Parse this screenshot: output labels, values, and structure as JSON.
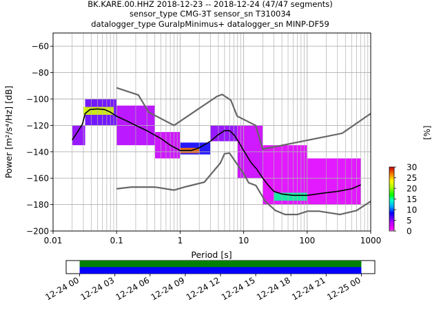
{
  "chart_data": [
    {
      "type": "heatmap",
      "title_lines": [
        "BK.KARE.00.HHZ   2018-12-23 -- 2018-12-24  (47/47 segments)",
        "sensor_type CMG-3T sensor_sn T310034",
        "datalogger_type GuralpMinimus+ datalogger_sn MINP-DF59"
      ],
      "xlabel": "Period [s]",
      "ylabel": "Power [m²/s⁴/Hz] [dB]",
      "x_scale": "log",
      "xlim": [
        0.01,
        1000
      ],
      "ylim": [
        -200,
        -50
      ],
      "x_ticks": [
        {
          "v": 0.01,
          "label": "0.01"
        },
        {
          "v": 0.1,
          "label": "0.1"
        },
        {
          "v": 1,
          "label": "1"
        },
        {
          "v": 10,
          "label": "10"
        },
        {
          "v": 100,
          "label": "100"
        },
        {
          "v": 1000,
          "label": "1000"
        }
      ],
      "y_ticks": [
        {
          "v": -60,
          "label": "−60"
        },
        {
          "v": -80,
          "label": "−80"
        },
        {
          "v": -100,
          "label": "−100"
        },
        {
          "v": -120,
          "label": "−120"
        },
        {
          "v": -140,
          "label": "−140"
        },
        {
          "v": -160,
          "label": "−160"
        },
        {
          "v": -180,
          "label": "−180"
        },
        {
          "v": -200,
          "label": "−200"
        }
      ],
      "grid": true,
      "colorbar": {
        "label": "[%]",
        "range": [
          0,
          30
        ],
        "ticks": [
          {
            "v": 0,
            "label": "0"
          },
          {
            "v": 5,
            "label": "5"
          },
          {
            "v": 10,
            "label": "10"
          },
          {
            "v": 15,
            "label": "15"
          },
          {
            "v": 20,
            "label": "20"
          },
          {
            "v": 25,
            "label": "25"
          },
          {
            "v": 30,
            "label": "30"
          }
        ]
      },
      "noise_model_high": [
        [
          0.1,
          -91.5
        ],
        [
          0.22,
          -97
        ],
        [
          0.32,
          -110
        ],
        [
          0.8,
          -120
        ],
        [
          3.8,
          -98
        ],
        [
          4.6,
          -96.5
        ],
        [
          6.3,
          -101
        ],
        [
          7.9,
          -113
        ],
        [
          15.4,
          -120
        ],
        [
          20,
          -138
        ],
        [
          354.8,
          -126
        ],
        [
          1000,
          -111
        ]
      ],
      "noise_model_low": [
        [
          0.1,
          -168
        ],
        [
          0.17,
          -166.7
        ],
        [
          0.4,
          -166.7
        ],
        [
          0.8,
          -169
        ],
        [
          1.24,
          -166.4
        ],
        [
          2.4,
          -163
        ],
        [
          4.3,
          -148.5
        ],
        [
          5.0,
          -141.5
        ],
        [
          6.0,
          -141
        ],
        [
          10,
          -156.5
        ],
        [
          12,
          -163.5
        ],
        [
          15.6,
          -165.5
        ],
        [
          21.9,
          -177.5
        ],
        [
          31.6,
          -184.5
        ],
        [
          45,
          -187.5
        ],
        [
          70,
          -187.5
        ],
        [
          101,
          -185
        ],
        [
          154,
          -185
        ],
        [
          328,
          -187.5
        ],
        [
          600,
          -184.5
        ],
        [
          1000,
          -177.5
        ]
      ],
      "mode_curve": [
        [
          0.02,
          -131
        ],
        [
          0.025,
          -124
        ],
        [
          0.029,
          -119
        ],
        [
          0.032,
          -111
        ],
        [
          0.038,
          -108
        ],
        [
          0.05,
          -107.5
        ],
        [
          0.065,
          -108
        ],
        [
          0.08,
          -110
        ],
        [
          0.1,
          -113
        ],
        [
          0.15,
          -117
        ],
        [
          0.2,
          -120
        ],
        [
          0.3,
          -124
        ],
        [
          0.5,
          -130
        ],
        [
          0.7,
          -135
        ],
        [
          1.0,
          -139
        ],
        [
          1.5,
          -139
        ],
        [
          2.0,
          -137
        ],
        [
          3.0,
          -132
        ],
        [
          4.0,
          -127
        ],
        [
          5.0,
          -124
        ],
        [
          6.0,
          -124
        ],
        [
          7.0,
          -127
        ],
        [
          8.0,
          -131
        ],
        [
          10,
          -139
        ],
        [
          13,
          -148
        ],
        [
          16,
          -153
        ],
        [
          20,
          -160
        ],
        [
          25,
          -166
        ],
        [
          30,
          -170
        ],
        [
          40,
          -172
        ],
        [
          60,
          -173
        ],
        [
          100,
          -173
        ],
        [
          200,
          -171
        ],
        [
          300,
          -170
        ],
        [
          500,
          -168
        ],
        [
          700,
          -165
        ]
      ],
      "density_bands": [
        {
          "x0": 0.02,
          "x1": 0.032,
          "y_lo": -135,
          "y_hi": -120,
          "p": 5
        },
        {
          "x0": 0.032,
          "x1": 0.1,
          "y_lo": -120,
          "y_hi": -100,
          "p": 6
        },
        {
          "x0": 0.1,
          "x1": 0.4,
          "y_lo": -135,
          "y_hi": -105,
          "p": 4
        },
        {
          "x0": 0.4,
          "x1": 1.0,
          "y_lo": -145,
          "y_hi": -125,
          "p": 3
        },
        {
          "x0": 1.0,
          "x1": 3.0,
          "y_lo": -142,
          "y_hi": -133,
          "p": 8
        },
        {
          "x0": 3.0,
          "x1": 8.0,
          "y_lo": -132,
          "y_hi": -120,
          "p": 5
        },
        {
          "x0": 8.0,
          "x1": 20,
          "y_lo": -160,
          "y_hi": -120,
          "p": 3
        },
        {
          "x0": 20,
          "x1": 100,
          "y_lo": -180,
          "y_hi": -135,
          "p": 2
        },
        {
          "x0": 100,
          "x1": 700,
          "y_lo": -180,
          "y_hi": -145,
          "p": 2
        },
        {
          "x0": 0.03,
          "x1": 0.09,
          "y_lo": -112,
          "y_hi": -106,
          "p": 22
        },
        {
          "x0": 1.0,
          "x1": 2.0,
          "y_lo": -141,
          "y_hi": -137,
          "p": 27
        },
        {
          "x0": 30,
          "x1": 100,
          "y_lo": -177,
          "y_hi": -171,
          "p": 15
        }
      ]
    },
    {
      "type": "timeline",
      "tick_labels": [
        "12-24 00",
        "12-24 03",
        "12-24 06",
        "12-24 09",
        "12-24 12",
        "12-24 15",
        "12-24 18",
        "12-24 21",
        "12-25 00"
      ],
      "series": [
        {
          "name": "",
          "color": "#008000",
          "span": [
            0,
            24
          ]
        },
        {
          "name": "",
          "color": "#0000ff",
          "span": [
            0,
            24
          ]
        }
      ],
      "xlim_hours": [
        -1.15,
        25.15
      ]
    }
  ]
}
